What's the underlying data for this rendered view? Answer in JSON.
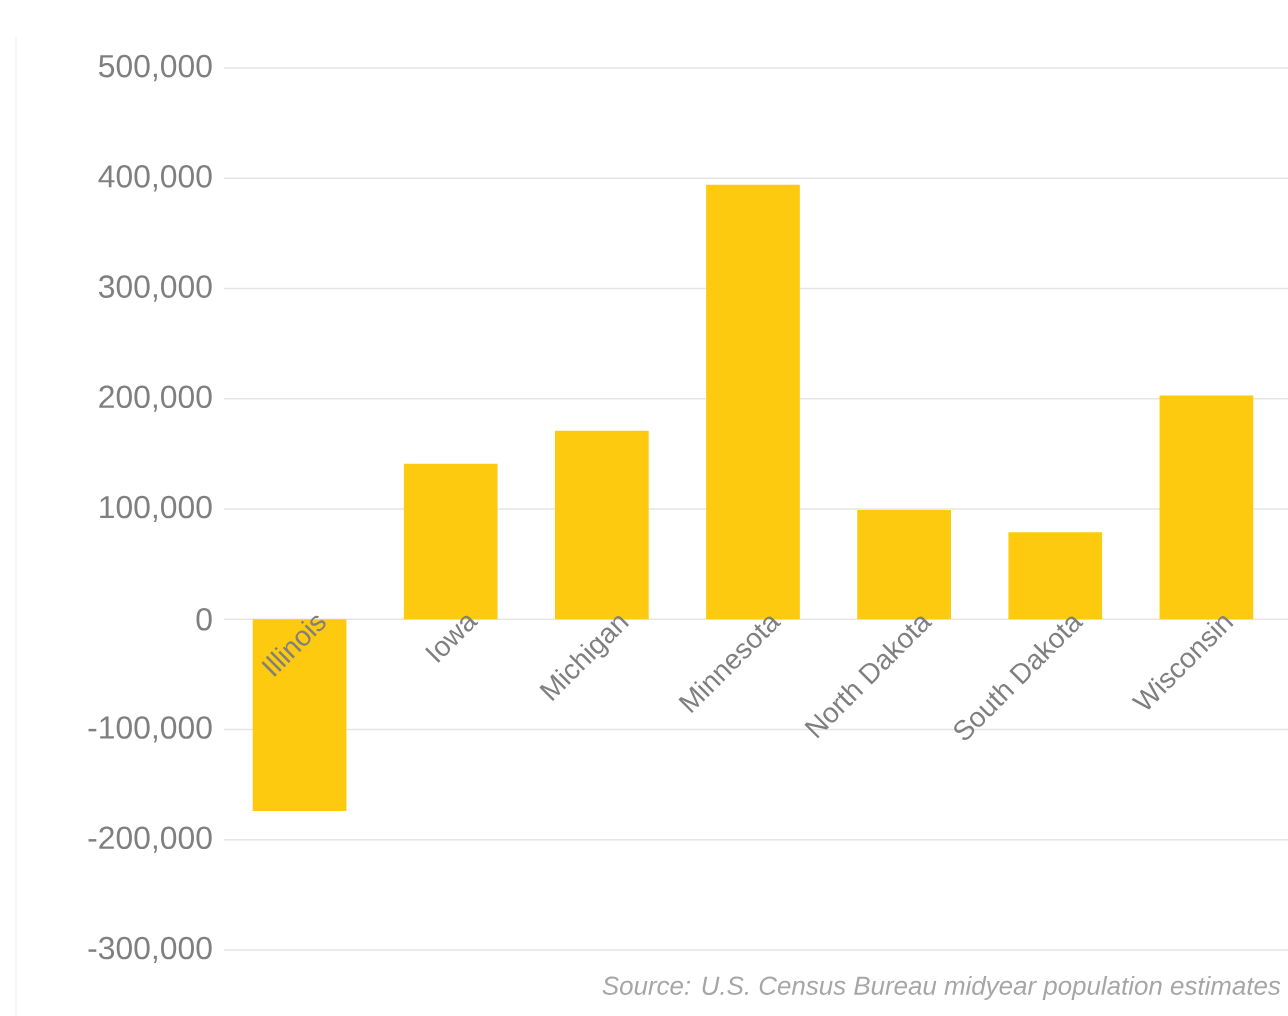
{
  "chart_data": {
    "type": "bar",
    "categories": [
      "Illinois",
      "Iowa",
      "Michigan",
      "Minnesota",
      "North Dakota",
      "South Dakota",
      "Wisconsin"
    ],
    "values": [
      -174000,
      141000,
      171000,
      394000,
      99000,
      79000,
      203000
    ],
    "color": "#fdca0f",
    "ylim": [
      -300000,
      500000
    ],
    "yticks": [
      {
        "value": -300000,
        "label": "-300,000"
      },
      {
        "value": -200000,
        "label": "-200,000"
      },
      {
        "value": -100000,
        "label": "-100,000"
      },
      0,
      {
        "value": 100000,
        "label": "100,000"
      },
      {
        "value": 200000,
        "label": "200,000"
      },
      {
        "value": 300000,
        "label": "300,000"
      },
      {
        "value": 400000,
        "label": "400,000"
      },
      {
        "value": 500000,
        "label": "500,000"
      }
    ],
    "grid": "y",
    "annotations": [
      "Source: U.S. Census Bureau midyear population estimates"
    ]
  }
}
